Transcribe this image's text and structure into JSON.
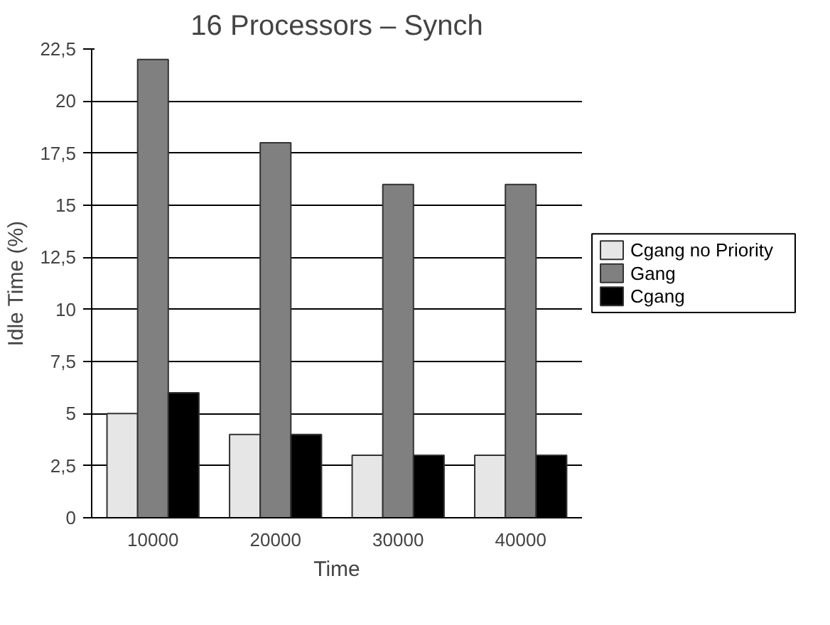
{
  "chart_data": {
    "type": "bar",
    "title": "16 Processors – Synch",
    "xlabel": "Time",
    "ylabel": "Idle Time (%)",
    "categories": [
      "10000",
      "20000",
      "30000",
      "40000"
    ],
    "series": [
      {
        "name": "Cgang no Priority",
        "color": "#e6e6e6",
        "values": [
          5,
          4,
          3,
          3
        ]
      },
      {
        "name": "Gang",
        "color": "#808080",
        "values": [
          22,
          18,
          16,
          16
        ]
      },
      {
        "name": "Cgang",
        "color": "#000000",
        "values": [
          6,
          4,
          3,
          3
        ]
      }
    ],
    "ylim": [
      0,
      22.5
    ],
    "yticks": [
      0,
      {
        "value": 2.5,
        "label": "2,5"
      },
      5,
      {
        "value": 7.5,
        "label": "7,5"
      },
      10,
      {
        "value": 12.5,
        "label": "12,5"
      },
      15,
      {
        "value": 17.5,
        "label": "17,5"
      },
      20,
      {
        "value": 22.5,
        "label": "22,5"
      }
    ],
    "grid": "y",
    "legend": "right"
  }
}
